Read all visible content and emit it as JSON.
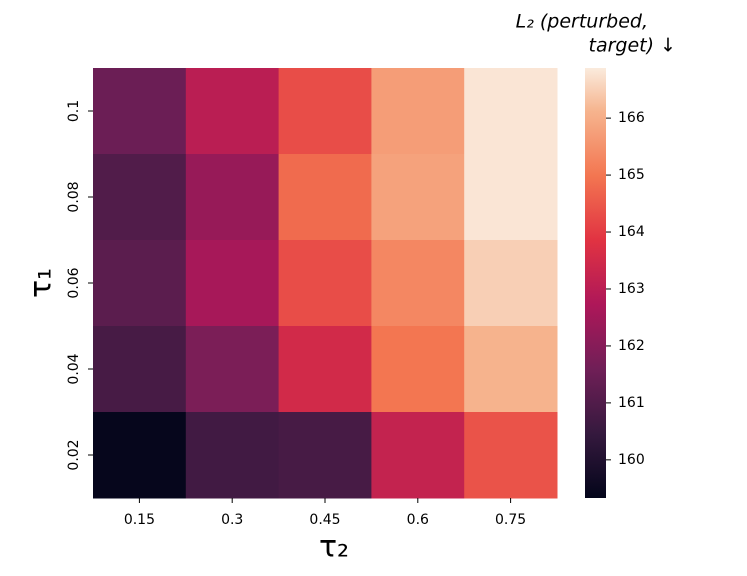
{
  "chart_data": {
    "type": "heatmap",
    "x_categories": [
      "0.15",
      "0.3",
      "0.45",
      "0.6",
      "0.75"
    ],
    "y_categories": [
      "0.1",
      "0.08",
      "0.06",
      "0.04",
      "0.02"
    ],
    "xlabel": "τ₂",
    "ylabel": "τ₁",
    "values": [
      [
        161.5,
        163.0,
        164.3,
        165.7,
        166.8
      ],
      [
        161.0,
        162.3,
        164.8,
        165.8,
        166.8
      ],
      [
        161.2,
        162.6,
        164.3,
        165.3,
        166.5
      ],
      [
        160.8,
        161.8,
        163.5,
        165.0,
        166.1
      ],
      [
        159.4,
        160.7,
        160.8,
        163.2,
        164.4
      ]
    ],
    "colormap": "rocket",
    "colorbar_lim": [
      159.33,
      166.88
    ],
    "colorbar_ticks": [
      160,
      161,
      162,
      163,
      164,
      165,
      166
    ],
    "colorbar_label": [
      "L₂ (perturbed,",
      "target) ↓"
    ]
  }
}
